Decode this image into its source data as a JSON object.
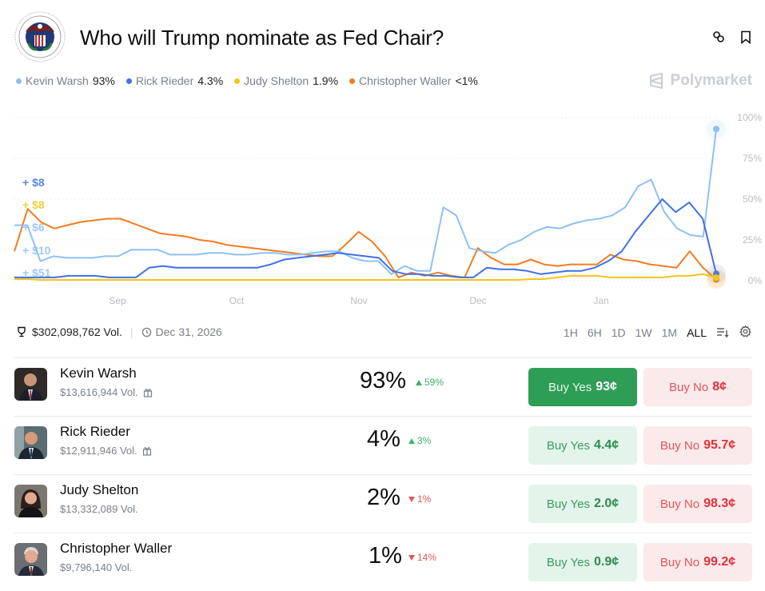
{
  "header": {
    "title": "Who will Trump nominate as Fed Chair?",
    "seal_icon": "federal-reserve-seal",
    "link_icon": "link-icon",
    "bookmark_icon": "bookmark-icon"
  },
  "legend": [
    {
      "name": "Kevin Warsh",
      "value": "93%",
      "color": "#8ec0f5"
    },
    {
      "name": "Rick Rieder",
      "value": "4.3%",
      "color": "#3f70e8"
    },
    {
      "name": "Judy Shelton",
      "value": "1.9%",
      "color": "#f5c518"
    },
    {
      "name": "Christopher Waller",
      "value": "<1%",
      "color": "#f47b20"
    }
  ],
  "brand": {
    "name": "Polymarket"
  },
  "chart_data": {
    "type": "line",
    "x_ticks": [
      "Sep",
      "Oct",
      "Nov",
      "Dec",
      "Jan"
    ],
    "y_ticks": [
      "100%",
      "75%",
      "50%",
      "25%",
      "0%"
    ],
    "ylim": [
      0,
      100
    ],
    "grid": true,
    "trade_annotations": [
      {
        "label": "+ $8",
        "color": "#3f70e8"
      },
      {
        "label": "+ $8",
        "color": "#f5c518"
      },
      {
        "label": "+ $6",
        "color": "#8ec0f5"
      },
      {
        "label": "+ $10",
        "color": "#8ec0f5"
      },
      {
        "label": "+ $51",
        "color": "#8ec0f5"
      }
    ],
    "series": [
      {
        "name": "Christopher Waller",
        "color": "#f47b20",
        "values": [
          18,
          44,
          36,
          32,
          34,
          36,
          37,
          38,
          38,
          35,
          32,
          29,
          28,
          27,
          25,
          24,
          22,
          21,
          20,
          19,
          18,
          17,
          16,
          15,
          15,
          22,
          30,
          24,
          15,
          2,
          5,
          3,
          5,
          3,
          2,
          20,
          14,
          10,
          10,
          13,
          10,
          9,
          10,
          10,
          10,
          16,
          13,
          12,
          10,
          9,
          8,
          18,
          8,
          0.8
        ]
      },
      {
        "name": "Kevin Warsh",
        "color": "#8ec0f5",
        "values": [
          34,
          34,
          12,
          15,
          14,
          14,
          14,
          15,
          15,
          19,
          19,
          19,
          16,
          16,
          16,
          17,
          17,
          16,
          16,
          17,
          17,
          16,
          16,
          17,
          18,
          18,
          14,
          12,
          12,
          4,
          9,
          6,
          6,
          45,
          40,
          20,
          18,
          17,
          22,
          25,
          30,
          33,
          32,
          35,
          37,
          38,
          40,
          45,
          58,
          62,
          42,
          32,
          28,
          27,
          93
        ]
      },
      {
        "name": "Rick Rieder",
        "color": "#3f70e8",
        "values": [
          2,
          2,
          2,
          2,
          3,
          3,
          3,
          2,
          2,
          2,
          8,
          9,
          8,
          8,
          8,
          8,
          8,
          8,
          8,
          10,
          13,
          14,
          15,
          16,
          17,
          16,
          15,
          14,
          6,
          4,
          4,
          3,
          3,
          2,
          2,
          8,
          7,
          7,
          6,
          4,
          5,
          6,
          6,
          8,
          12,
          18,
          30,
          40,
          50,
          42,
          48,
          38,
          4.3
        ]
      },
      {
        "name": "Judy Shelton",
        "color": "#f5c518",
        "values": [
          1,
          1,
          0.5,
          0.5,
          0.5,
          0.5,
          0.5,
          0.5,
          0.5,
          0.5,
          0.5,
          0.5,
          0.5,
          0.5,
          0.5,
          0.5,
          0.5,
          0.5,
          0.5,
          0.5,
          0.5,
          0.5,
          0.5,
          0.5,
          0.5,
          0.5,
          0.5,
          0.5,
          0.5,
          0.5,
          0.5,
          0.5,
          0.5,
          0.5,
          0.5,
          0.5,
          0.5,
          0.5,
          0.5,
          1,
          1,
          2,
          3,
          3,
          3,
          2,
          2,
          2,
          2,
          2,
          3,
          3,
          4,
          1.9
        ]
      }
    ]
  },
  "stats": {
    "volume": "$302,098,762 Vol.",
    "end_date": "Dec 31, 2026",
    "trophy_icon": "trophy-icon",
    "clock_icon": "clock-icon"
  },
  "ranges": {
    "options": [
      "1H",
      "6H",
      "1D",
      "1W",
      "1M",
      "ALL"
    ],
    "selected": "ALL",
    "filter_icon": "filter-sort-icon",
    "settings_icon": "gear-icon"
  },
  "outcomes": [
    {
      "name": "Kevin Warsh",
      "volume": "$13,616,944 Vol.",
      "has_gift": true,
      "probability": "93%",
      "change": "59%",
      "direction": "up",
      "yes_label": "Buy Yes",
      "yes_price": "93¢",
      "no_label": "Buy No",
      "no_price": "8¢",
      "avatar_color": "#3a3330"
    },
    {
      "name": "Rick Rieder",
      "volume": "$12,911,946 Vol.",
      "has_gift": true,
      "probability": "4%",
      "change": "3%",
      "direction": "up",
      "yes_label": "Buy Yes",
      "yes_price": "4.4¢",
      "no_label": "Buy No",
      "no_price": "95.7¢",
      "avatar_color": "#4a5a5f"
    },
    {
      "name": "Judy Shelton",
      "volume": "$13,332,089 Vol.",
      "has_gift": false,
      "probability": "2%",
      "change": "1%",
      "direction": "down",
      "yes_label": "Buy Yes",
      "yes_price": "2.0¢",
      "no_label": "Buy No",
      "no_price": "98.3¢",
      "avatar_color": "#6c6660"
    },
    {
      "name": "Christopher Waller",
      "volume": "$9,796,140 Vol.",
      "has_gift": false,
      "probability": "1%",
      "change": "14%",
      "direction": "down",
      "yes_label": "Buy Yes",
      "yes_price": "0.9¢",
      "no_label": "Buy No",
      "no_price": "99.2¢",
      "avatar_color": "#5e6166"
    }
  ]
}
